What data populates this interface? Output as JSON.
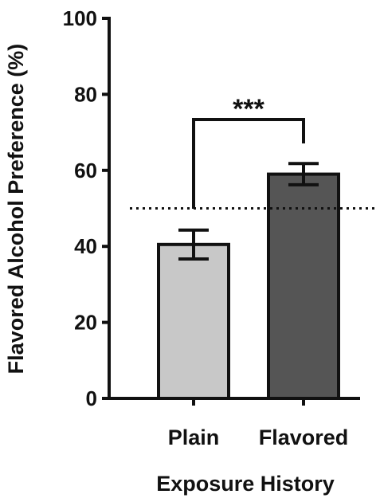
{
  "chart_data": {
    "type": "bar",
    "categories": [
      "Plain",
      "Flavored"
    ],
    "series": [
      {
        "values": [
          40.5,
          59.0
        ],
        "error": [
          3.8,
          2.8
        ],
        "colors": [
          "#c8c8c8",
          "#555555"
        ]
      }
    ],
    "xlabel": "Exposure History",
    "ylabel": "Flavored Alcohol Preference (%)",
    "ylim": [
      0,
      100
    ],
    "yticks": [
      0,
      20,
      40,
      60,
      80,
      100
    ],
    "reference_line": {
      "y": 50,
      "style": "dotted"
    },
    "significance": {
      "between": [
        "Plain",
        "Flavored"
      ],
      "label": "***"
    },
    "grid": false,
    "legend": "none"
  }
}
